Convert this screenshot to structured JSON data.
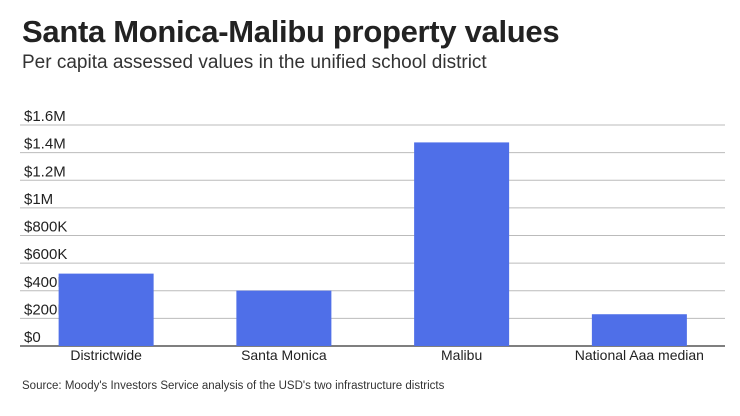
{
  "chart_data": {
    "type": "bar",
    "title": "Santa Monica-Malibu property values",
    "subtitle": "Per capita assessed values in the unified school district",
    "categories": [
      "Districtwide",
      "Santa Monica",
      "Malibu",
      "National Aaa median"
    ],
    "values": [
      524000,
      401000,
      1474000,
      230000
    ],
    "ylim": [
      0,
      1600000
    ],
    "yticks": [
      0,
      200000,
      400000,
      600000,
      800000,
      1000000,
      1200000,
      1400000,
      1600000
    ],
    "ytick_labels": [
      "$0",
      "$200K",
      "$400K",
      "$600K",
      "$800K",
      "$1M",
      "$1.2M",
      "$1.4M",
      "$1.6M"
    ],
    "xlabel": "",
    "ylabel": "",
    "grid": true,
    "bar_color": "#4f6fe8",
    "source": "Source: Moody's Investors Service analysis of the USD's two infrastructure districts"
  }
}
